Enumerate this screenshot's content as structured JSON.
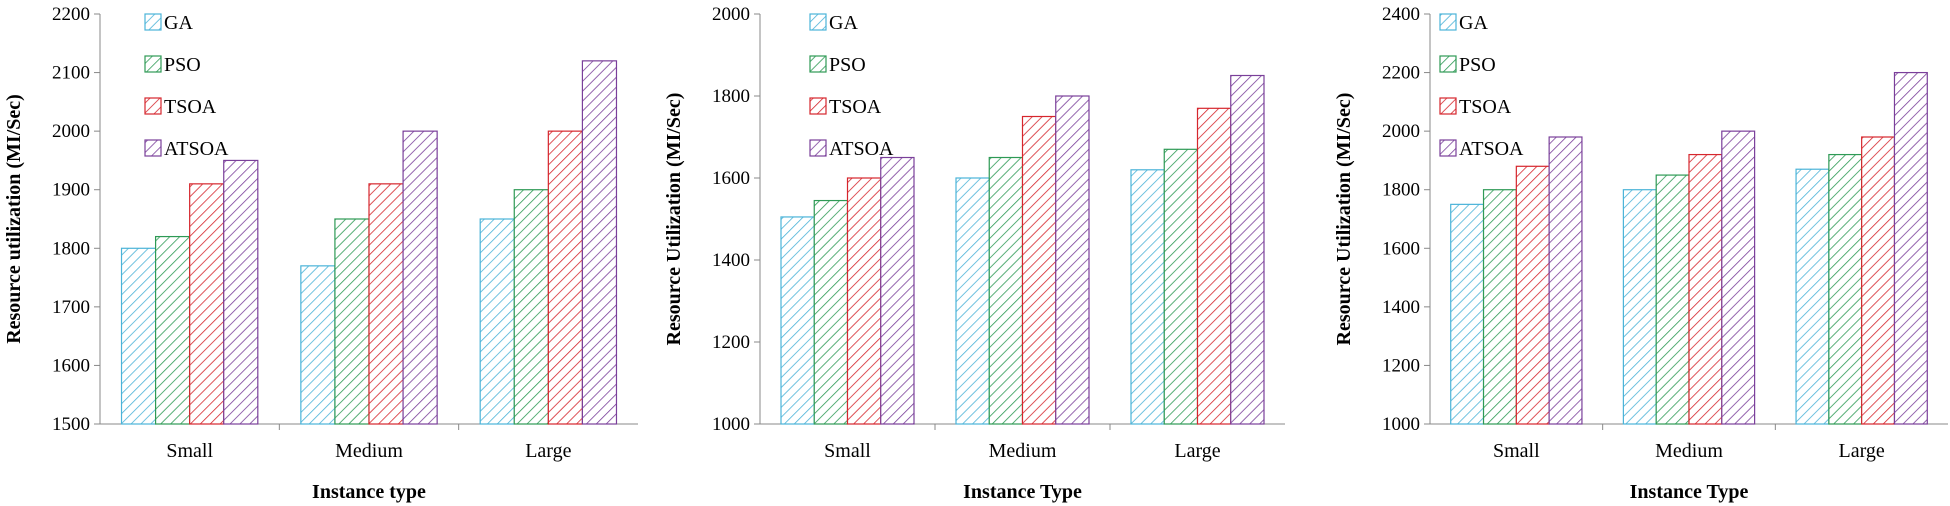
{
  "chart_data": [
    {
      "type": "bar",
      "categories": [
        "Small",
        "Medium",
        "Large"
      ],
      "series": [
        {
          "name": "GA",
          "values": [
            1800,
            1770,
            1850
          ]
        },
        {
          "name": "PSO",
          "values": [
            1820,
            1850,
            1900
          ]
        },
        {
          "name": "TSOA",
          "values": [
            1910,
            1910,
            2000
          ]
        },
        {
          "name": "ATSOA",
          "values": [
            1950,
            2000,
            2120
          ]
        }
      ],
      "title": "",
      "xlabel": "Instance type",
      "ylabel": "Resource utilization (MI/Sec)",
      "ylim": [
        1500,
        2200
      ],
      "yticks": [
        1500,
        1600,
        1700,
        1800,
        1900,
        2000,
        2100,
        2200
      ],
      "legend": "top-left"
    },
    {
      "type": "bar",
      "categories": [
        "Small",
        "Medium",
        "Large"
      ],
      "series": [
        {
          "name": "GA",
          "values": [
            1505,
            1600,
            1620
          ]
        },
        {
          "name": "PSO",
          "values": [
            1545,
            1650,
            1670
          ]
        },
        {
          "name": "TSOA",
          "values": [
            1600,
            1750,
            1770
          ]
        },
        {
          "name": "ATSOA",
          "values": [
            1650,
            1800,
            1850
          ]
        }
      ],
      "title": "",
      "xlabel": "Instance Type",
      "ylabel": "Resource Utilization (MI/Sec)",
      "ylim": [
        1000,
        2000
      ],
      "yticks": [
        1000,
        1200,
        1400,
        1600,
        1800,
        2000
      ],
      "legend": "top-left"
    },
    {
      "type": "bar",
      "categories": [
        "Small",
        "Medium",
        "Large"
      ],
      "series": [
        {
          "name": "GA",
          "values": [
            1750,
            1800,
            1870
          ]
        },
        {
          "name": "PSO",
          "values": [
            1800,
            1850,
            1920
          ]
        },
        {
          "name": "TSOA",
          "values": [
            1880,
            1920,
            1980
          ]
        },
        {
          "name": "ATSOA",
          "values": [
            1980,
            2000,
            2200
          ]
        }
      ],
      "title": "",
      "xlabel": "Instance Type",
      "ylabel": "Resource Utilization (MI/Sec)",
      "ylim": [
        1000,
        2400
      ],
      "yticks": [
        1000,
        1200,
        1400,
        1600,
        1800,
        2000,
        2200,
        2400
      ],
      "legend": "top-left"
    }
  ],
  "colors": {
    "GA": "#4bb3d8",
    "PSO": "#2e9a55",
    "TSOA": "#d6262d",
    "ATSOA": "#7a3f9a"
  },
  "icons": {
    "legend_swatch": "hatched-square-icon"
  }
}
